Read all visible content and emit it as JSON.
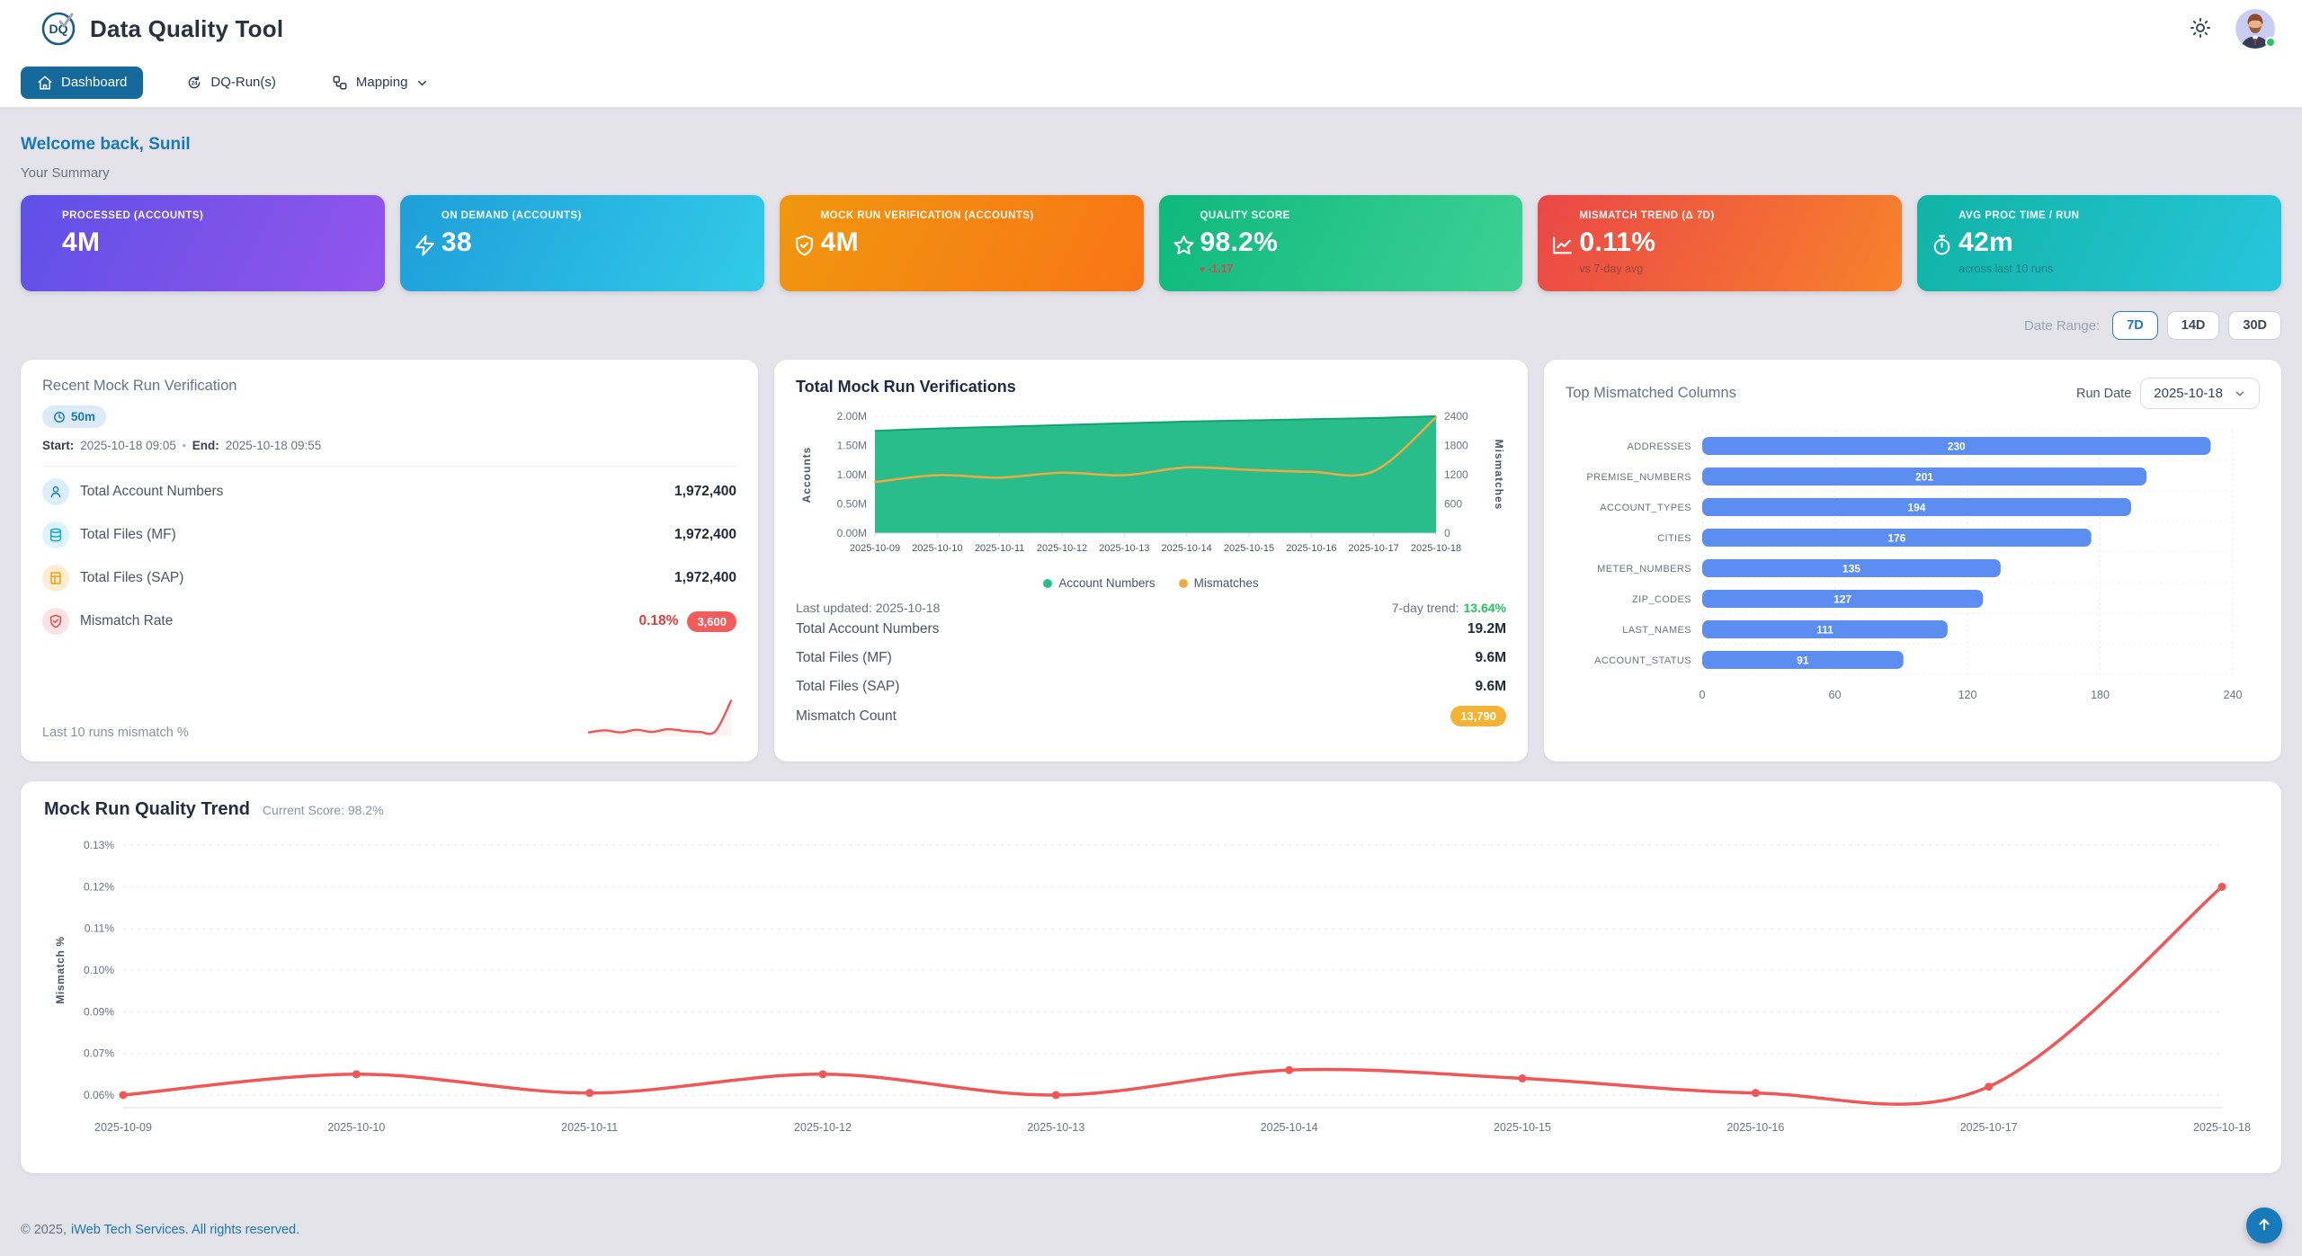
{
  "header": {
    "app_title": "Data Quality Tool",
    "logo_text": "DQ",
    "theme_toggle_icon": "sun-icon",
    "avatar_icon": "user-avatar",
    "status_color": "#22c55e"
  },
  "nav": {
    "items": [
      {
        "id": "dashboard",
        "label": "Dashboard",
        "icon": "home-icon",
        "active": true
      },
      {
        "id": "dq-runs",
        "label": "DQ-Run(s)",
        "icon": "history-24-icon",
        "active": false
      },
      {
        "id": "mapping",
        "label": "Mapping",
        "icon": "workflow-icon",
        "active": false,
        "dropdown": true
      }
    ]
  },
  "welcome": {
    "greeting": "Welcome back, Sunil",
    "summary_label": "Your Summary"
  },
  "stat_cards": [
    {
      "label": "PROCESSED (ACCOUNTS)",
      "value": "4M",
      "icon": null,
      "gradient": [
        "#5f50e7",
        "#9355ec"
      ],
      "sub": null,
      "sub_type": null
    },
    {
      "label": "ON DEMAND (ACCOUNTS)",
      "value": "38",
      "icon": "bolt-icon",
      "gradient": [
        "#1e9ed9",
        "#32cbe9"
      ],
      "sub": null,
      "sub_type": null
    },
    {
      "label": "MOCK RUN VERIFICATION (ACCOUNTS)",
      "value": "4M",
      "icon": "shield-check-icon",
      "gradient": [
        "#f0970f",
        "#f97516"
      ],
      "sub": null,
      "sub_type": null
    },
    {
      "label": "QUALITY SCORE",
      "value": "98.2%",
      "icon": "star-icon",
      "gradient": [
        "#0eb87e",
        "#3ed194"
      ],
      "sub": "-1.17",
      "sub_type": "delta-down"
    },
    {
      "label": "MISMATCH TREND (Δ 7D)",
      "value": "0.11%",
      "icon": "trend-icon",
      "gradient": [
        "#ea4747",
        "#f8822b"
      ],
      "sub": "vs 7-day avg",
      "sub_type": "muted"
    },
    {
      "label": "AVG PROC TIME / RUN",
      "value": "42m",
      "icon": "stopwatch-icon",
      "gradient": [
        "#10b3a3",
        "#28c6dd"
      ],
      "sub": "across last 10 runs",
      "sub_type": "muted"
    }
  ],
  "date_range": {
    "label": "Date Range:",
    "options": [
      {
        "label": "7D",
        "active": true
      },
      {
        "label": "14D",
        "active": false
      },
      {
        "label": "30D",
        "active": false
      }
    ]
  },
  "recent_panel": {
    "title": "Recent Mock Run Verification",
    "duration_badge": "50m",
    "duration_icon": "clock-icon",
    "start_label": "Start:",
    "start_value": "2025-10-18 09:05",
    "separator": "•",
    "end_label": "End:",
    "end_value": "2025-10-18 09:55",
    "rows": [
      {
        "icon": "user-icon",
        "icon_color": "#1d7fbe",
        "icon_bg": "#ddeefb",
        "label": "Total Account Numbers",
        "value": "1,972,400"
      },
      {
        "icon": "database-icon",
        "icon_color": "#0ea5d9",
        "icon_bg": "#def4fd",
        "label": "Total Files (MF)",
        "value": "1,972,400"
      },
      {
        "icon": "file-icon",
        "icon_color": "#f59e0b",
        "icon_bg": "#fdeed3",
        "label": "Total Files (SAP)",
        "value": "1,972,400"
      },
      {
        "icon": "shield-alert-icon",
        "icon_color": "#ef4444",
        "icon_bg": "#fde3e3",
        "label": "Mismatch Rate",
        "value": "0.18%",
        "value_color": "#e23c3c",
        "badge": "3,600",
        "badge_color": "red"
      }
    ],
    "sparkline_label": "Last 10 runs mismatch %"
  },
  "verifications_panel": {
    "title": "Total Mock Run Verifications",
    "last_updated_label": "Last updated:",
    "last_updated_value": "2025-10-18",
    "trend_label": "7-day trend:",
    "trend_value": "13.64%",
    "summary_rows": [
      {
        "label": "Total Account Numbers",
        "value": "19.2M"
      },
      {
        "label": "Total Files (MF)",
        "value": "9.6M"
      },
      {
        "label": "Total Files (SAP)",
        "value": "9.6M"
      },
      {
        "label": "Mismatch Count",
        "badge": "13,790",
        "badge_color": "amber"
      }
    ]
  },
  "columns_panel": {
    "title": "Top Mismatched Columns",
    "run_date_label": "Run Date",
    "run_date_value": "2025-10-18"
  },
  "trend_panel": {
    "title": "Mock Run Quality Trend",
    "subtitle": "Current Score: 98.2%"
  },
  "footer": {
    "copyright": "© 2025,",
    "link": "iWeb Tech Services. All rights reserved."
  },
  "chart_data": [
    {
      "id": "last10-sparkline",
      "type": "line",
      "title": "Last 10 runs mismatch %",
      "values": [
        0.06,
        0.064,
        0.06,
        0.065,
        0.061,
        0.066,
        0.063,
        0.061,
        0.062,
        0.12
      ],
      "color": "#f05454"
    },
    {
      "id": "verifications",
      "type": "area",
      "title": "Total Mock Run Verifications",
      "x": [
        "2025-10-09",
        "2025-10-10",
        "2025-10-11",
        "2025-10-12",
        "2025-10-13",
        "2025-10-14",
        "2025-10-15",
        "2025-10-16",
        "2025-10-17",
        "2025-10-18"
      ],
      "series": [
        {
          "name": "Account Numbers",
          "type": "area",
          "axis": "left",
          "color": "#2abd8c",
          "line_color": "#14a173",
          "values": [
            1.75,
            1.79,
            1.82,
            1.85,
            1.88,
            1.91,
            1.93,
            1.95,
            1.97,
            2.0
          ]
        },
        {
          "name": "Mismatches",
          "type": "line",
          "axis": "right",
          "color": "#eeab3f",
          "line_color": "#eeab3f",
          "values": [
            1050,
            1190,
            1140,
            1240,
            1190,
            1350,
            1300,
            1260,
            1270,
            2380
          ]
        }
      ],
      "left_axis": {
        "label": "Accounts",
        "ticks": [
          "0.00M",
          "0.50M",
          "1.00M",
          "1.50M",
          "2.00M"
        ],
        "max": 2.0
      },
      "right_axis": {
        "label": "Mismatches",
        "ticks": [
          "0",
          "600",
          "1200",
          "1800",
          "2400"
        ],
        "max": 2400
      },
      "legend_position": "bottom"
    },
    {
      "id": "top-mismatched",
      "type": "bar",
      "orientation": "horizontal",
      "categories": [
        "ADDRESSES",
        "PREMISE_NUMBERS",
        "ACCOUNT_TYPES",
        "CITIES",
        "METER_NUMBERS",
        "ZIP_CODES",
        "LAST_NAMES",
        "ACCOUNT_STATUS"
      ],
      "values": [
        230,
        201,
        194,
        176,
        135,
        127,
        111,
        91
      ],
      "xticks": [
        0,
        60,
        120,
        180,
        240
      ],
      "xmax": 240,
      "bar_color": "#5b8ef0"
    },
    {
      "id": "quality-trend",
      "type": "line",
      "x": [
        "2025-10-09",
        "2025-10-10",
        "2025-10-11",
        "2025-10-12",
        "2025-10-13",
        "2025-10-14",
        "2025-10-15",
        "2025-10-16",
        "2025-10-17",
        "2025-10-18"
      ],
      "values": [
        0.06,
        0.065,
        0.0605,
        0.065,
        0.06,
        0.066,
        0.064,
        0.0605,
        0.062,
        0.12
      ],
      "ytick_labels": [
        "0.13%",
        "0.12%",
        "0.11%",
        "0.10%",
        "0.09%",
        "0.07%",
        "0.06%"
      ],
      "ytick_values": [
        0.13,
        0.12,
        0.11,
        0.1,
        0.09,
        0.07,
        0.06
      ],
      "ylabel": "Mismatch %",
      "color": "#f05656",
      "grid": true
    }
  ]
}
